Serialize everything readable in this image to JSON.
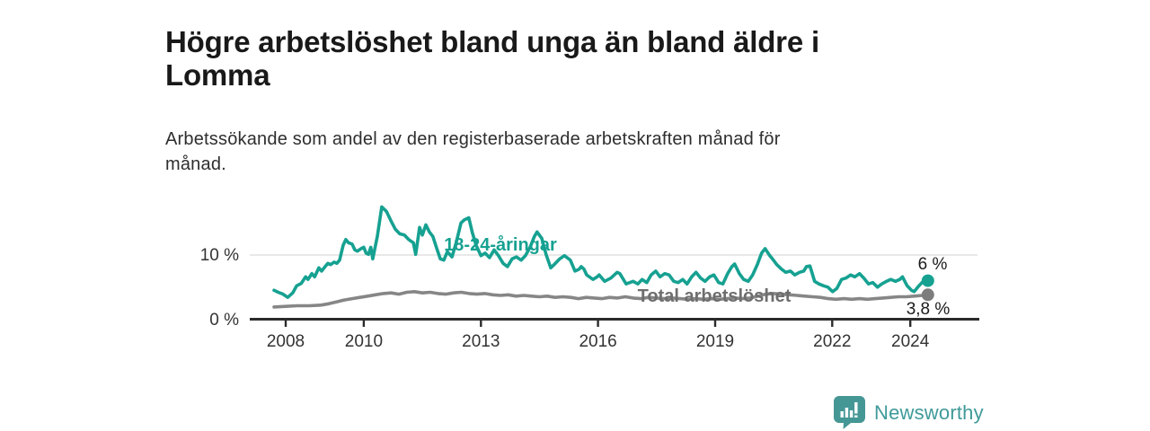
{
  "header": {
    "title_line1": "Högre arbetslöshet bland unga än bland äldre i",
    "title_line2": "Lomma",
    "subtitle_line1": "Arbetssökande som andel av den registerbaserade arbetskraften månad för",
    "subtitle_line2": "månad."
  },
  "branding": {
    "logo_text": "Newsworthy",
    "logo_icon": "bar-chart-speech-bubble-icon",
    "brand_color": "#3f9a99"
  },
  "chart_data": {
    "type": "line",
    "title": "Högre arbetslöshet bland unga än bland äldre i Lomma",
    "subtitle": "Arbetssökande som andel av den registerbaserade arbetskraften månad för månad.",
    "grid": "single horizontal gridline at 10 %",
    "legend_position": "labels drawn on lines",
    "x_axis": {
      "tick_labels": [
        "2008",
        "2010",
        "2013",
        "2016",
        "2019",
        "2022",
        "2024"
      ],
      "tick_values": [
        2008,
        2010,
        2013,
        2016,
        2019,
        2022,
        2024
      ],
      "range": [
        2007.6,
        2025.3
      ]
    },
    "y_axis": {
      "unit": "%",
      "tick_labels": [
        "10 %",
        "0 %"
      ],
      "tick_values": [
        10,
        0
      ],
      "range": [
        0,
        19
      ],
      "gridline_at": 10
    },
    "series": [
      {
        "name": "18-24-åringar",
        "color": "#16a191",
        "end_label": "6 %",
        "end_value": 6.0,
        "points": [
          [
            2007.7,
            4.5
          ],
          [
            2007.81,
            4.2
          ],
          [
            2007.93,
            3.9
          ],
          [
            2008.05,
            3.4
          ],
          [
            2008.18,
            4.1
          ],
          [
            2008.28,
            5.2
          ],
          [
            2008.4,
            5.6
          ],
          [
            2008.51,
            6.6
          ],
          [
            2008.57,
            6.2
          ],
          [
            2008.67,
            7.1
          ],
          [
            2008.74,
            6.6
          ],
          [
            2008.85,
            8.0
          ],
          [
            2008.92,
            7.5
          ],
          [
            2009.01,
            8.2
          ],
          [
            2009.08,
            8.7
          ],
          [
            2009.15,
            8.5
          ],
          [
            2009.24,
            8.9
          ],
          [
            2009.31,
            8.7
          ],
          [
            2009.38,
            9.2
          ],
          [
            2009.47,
            11.5
          ],
          [
            2009.54,
            12.4
          ],
          [
            2009.61,
            11.9
          ],
          [
            2009.7,
            11.7
          ],
          [
            2009.77,
            10.8
          ],
          [
            2009.84,
            10.6
          ],
          [
            2009.93,
            11.0
          ],
          [
            2010.0,
            11.2
          ],
          [
            2010.06,
            10.3
          ],
          [
            2010.12,
            10.1
          ],
          [
            2010.18,
            11.2
          ],
          [
            2010.23,
            9.4
          ],
          [
            2010.35,
            13.0
          ],
          [
            2010.46,
            17.5
          ],
          [
            2010.58,
            16.8
          ],
          [
            2010.69,
            15.4
          ],
          [
            2010.81,
            14.0
          ],
          [
            2010.92,
            13.3
          ],
          [
            2011.04,
            13.1
          ],
          [
            2011.15,
            12.4
          ],
          [
            2011.27,
            11.9
          ],
          [
            2011.33,
            10.1
          ],
          [
            2011.43,
            14.3
          ],
          [
            2011.5,
            13.1
          ],
          [
            2011.59,
            14.7
          ],
          [
            2011.68,
            13.6
          ],
          [
            2011.77,
            12.9
          ],
          [
            2011.87,
            11.0
          ],
          [
            2011.96,
            9.4
          ],
          [
            2012.05,
            9.2
          ],
          [
            2012.14,
            10.5
          ],
          [
            2012.26,
            9.7
          ],
          [
            2012.37,
            12.0
          ],
          [
            2012.49,
            15.0
          ],
          [
            2012.58,
            15.5
          ],
          [
            2012.69,
            15.8
          ],
          [
            2012.78,
            13.5
          ],
          [
            2012.88,
            11.5
          ],
          [
            2013.0,
            9.9
          ],
          [
            2013.11,
            10.3
          ],
          [
            2013.22,
            9.6
          ],
          [
            2013.34,
            10.8
          ],
          [
            2013.45,
            9.9
          ],
          [
            2013.57,
            8.7
          ],
          [
            2013.68,
            8.2
          ],
          [
            2013.8,
            9.4
          ],
          [
            2013.91,
            9.7
          ],
          [
            2014.03,
            9.2
          ],
          [
            2014.14,
            9.9
          ],
          [
            2014.26,
            11.2
          ],
          [
            2014.37,
            12.9
          ],
          [
            2014.44,
            13.6
          ],
          [
            2014.56,
            12.6
          ],
          [
            2014.67,
            10.1
          ],
          [
            2014.79,
            8.0
          ],
          [
            2014.91,
            8.7
          ],
          [
            2015.02,
            9.4
          ],
          [
            2015.14,
            9.9
          ],
          [
            2015.29,
            9.2
          ],
          [
            2015.41,
            7.5
          ],
          [
            2015.52,
            7.8
          ],
          [
            2015.57,
            8.2
          ],
          [
            2015.64,
            7.8
          ],
          [
            2015.71,
            6.9
          ],
          [
            2015.87,
            6.2
          ],
          [
            2015.98,
            6.6
          ],
          [
            2016.03,
            6.9
          ],
          [
            2016.17,
            5.9
          ],
          [
            2016.33,
            6.4
          ],
          [
            2016.49,
            7.3
          ],
          [
            2016.56,
            7.1
          ],
          [
            2016.72,
            5.5
          ],
          [
            2016.9,
            5.9
          ],
          [
            2017.02,
            5.5
          ],
          [
            2017.13,
            6.2
          ],
          [
            2017.25,
            5.7
          ],
          [
            2017.36,
            6.9
          ],
          [
            2017.48,
            7.5
          ],
          [
            2017.59,
            6.6
          ],
          [
            2017.71,
            7.1
          ],
          [
            2017.82,
            6.9
          ],
          [
            2017.94,
            5.9
          ],
          [
            2018.05,
            5.7
          ],
          [
            2018.17,
            6.2
          ],
          [
            2018.28,
            5.5
          ],
          [
            2018.4,
            6.6
          ],
          [
            2018.51,
            7.3
          ],
          [
            2018.63,
            6.4
          ],
          [
            2018.74,
            5.9
          ],
          [
            2018.86,
            6.6
          ],
          [
            2018.97,
            6.9
          ],
          [
            2019.09,
            5.7
          ],
          [
            2019.2,
            5.5
          ],
          [
            2019.32,
            7.1
          ],
          [
            2019.43,
            8.2
          ],
          [
            2019.5,
            8.6
          ],
          [
            2019.62,
            7.1
          ],
          [
            2019.73,
            6.2
          ],
          [
            2019.85,
            5.9
          ],
          [
            2019.96,
            6.9
          ],
          [
            2020.08,
            8.5
          ],
          [
            2020.19,
            10.3
          ],
          [
            2020.28,
            11.0
          ],
          [
            2020.4,
            9.9
          ],
          [
            2020.47,
            9.4
          ],
          [
            2020.58,
            8.5
          ],
          [
            2020.7,
            7.8
          ],
          [
            2020.81,
            7.3
          ],
          [
            2020.93,
            7.5
          ],
          [
            2021.04,
            6.9
          ],
          [
            2021.16,
            7.3
          ],
          [
            2021.27,
            7.5
          ],
          [
            2021.34,
            8.2
          ],
          [
            2021.43,
            8.3
          ],
          [
            2021.55,
            5.9
          ],
          [
            2021.66,
            5.5
          ],
          [
            2021.78,
            5.2
          ],
          [
            2021.89,
            5.0
          ],
          [
            2022.01,
            4.3
          ],
          [
            2022.12,
            4.8
          ],
          [
            2022.24,
            6.2
          ],
          [
            2022.35,
            6.4
          ],
          [
            2022.47,
            6.9
          ],
          [
            2022.58,
            6.6
          ],
          [
            2022.7,
            7.1
          ],
          [
            2022.81,
            6.4
          ],
          [
            2022.93,
            5.5
          ],
          [
            2023.04,
            5.7
          ],
          [
            2023.16,
            5.0
          ],
          [
            2023.27,
            5.5
          ],
          [
            2023.39,
            5.9
          ],
          [
            2023.5,
            6.2
          ],
          [
            2023.62,
            5.9
          ],
          [
            2023.73,
            6.2
          ],
          [
            2023.8,
            6.6
          ],
          [
            2023.92,
            5.2
          ],
          [
            2024.03,
            4.5
          ],
          [
            2024.1,
            4.3
          ],
          [
            2024.22,
            5.2
          ],
          [
            2024.33,
            5.9
          ],
          [
            2024.45,
            6.0
          ]
        ]
      },
      {
        "name": "Total arbetslöshet",
        "color": "#868686",
        "label_color": "#6e6e6e",
        "dot_color": "#7d7d7d",
        "end_label": "3,8 %",
        "end_value": 3.8,
        "points": [
          [
            2007.7,
            1.9
          ],
          [
            2008.0,
            2.0
          ],
          [
            2008.3,
            2.1
          ],
          [
            2008.6,
            2.1
          ],
          [
            2008.9,
            2.2
          ],
          [
            2009.1,
            2.4
          ],
          [
            2009.3,
            2.7
          ],
          [
            2009.5,
            3.0
          ],
          [
            2009.7,
            3.2
          ],
          [
            2009.9,
            3.4
          ],
          [
            2010.1,
            3.6
          ],
          [
            2010.3,
            3.8
          ],
          [
            2010.5,
            4.0
          ],
          [
            2010.7,
            4.1
          ],
          [
            2010.9,
            3.9
          ],
          [
            2011.1,
            4.2
          ],
          [
            2011.3,
            4.3
          ],
          [
            2011.5,
            4.1
          ],
          [
            2011.7,
            4.2
          ],
          [
            2011.9,
            4.0
          ],
          [
            2012.1,
            3.9
          ],
          [
            2012.3,
            4.1
          ],
          [
            2012.5,
            4.2
          ],
          [
            2012.7,
            4.0
          ],
          [
            2012.9,
            3.9
          ],
          [
            2013.1,
            4.0
          ],
          [
            2013.3,
            3.8
          ],
          [
            2013.5,
            3.7
          ],
          [
            2013.7,
            3.8
          ],
          [
            2013.9,
            3.6
          ],
          [
            2014.1,
            3.7
          ],
          [
            2014.3,
            3.6
          ],
          [
            2014.5,
            3.5
          ],
          [
            2014.7,
            3.6
          ],
          [
            2014.9,
            3.4
          ],
          [
            2015.1,
            3.5
          ],
          [
            2015.3,
            3.4
          ],
          [
            2015.5,
            3.2
          ],
          [
            2015.7,
            3.4
          ],
          [
            2015.9,
            3.3
          ],
          [
            2016.1,
            3.2
          ],
          [
            2016.3,
            3.4
          ],
          [
            2016.5,
            3.3
          ],
          [
            2016.7,
            3.5
          ],
          [
            2016.9,
            3.3
          ],
          [
            2017.1,
            3.2
          ],
          [
            2017.3,
            3.4
          ],
          [
            2017.5,
            3.3
          ],
          [
            2017.7,
            3.2
          ],
          [
            2017.9,
            3.3
          ],
          [
            2018.1,
            3.2
          ],
          [
            2018.3,
            3.1
          ],
          [
            2018.5,
            3.2
          ],
          [
            2018.7,
            3.1
          ],
          [
            2018.9,
            3.2
          ],
          [
            2019.1,
            3.1
          ],
          [
            2019.3,
            3.2
          ],
          [
            2019.5,
            3.3
          ],
          [
            2019.7,
            3.2
          ],
          [
            2019.9,
            3.3
          ],
          [
            2020.1,
            3.6
          ],
          [
            2020.3,
            3.9
          ],
          [
            2020.5,
            4.0
          ],
          [
            2020.7,
            3.9
          ],
          [
            2020.9,
            3.8
          ],
          [
            2021.1,
            3.7
          ],
          [
            2021.3,
            3.6
          ],
          [
            2021.5,
            3.5
          ],
          [
            2021.7,
            3.4
          ],
          [
            2021.9,
            3.2
          ],
          [
            2022.1,
            3.1
          ],
          [
            2022.3,
            3.2
          ],
          [
            2022.5,
            3.1
          ],
          [
            2022.7,
            3.2
          ],
          [
            2022.9,
            3.1
          ],
          [
            2023.1,
            3.2
          ],
          [
            2023.3,
            3.3
          ],
          [
            2023.5,
            3.4
          ],
          [
            2023.7,
            3.5
          ],
          [
            2023.9,
            3.5
          ],
          [
            2024.1,
            3.6
          ],
          [
            2024.3,
            3.7
          ],
          [
            2024.45,
            3.8
          ]
        ]
      }
    ]
  }
}
